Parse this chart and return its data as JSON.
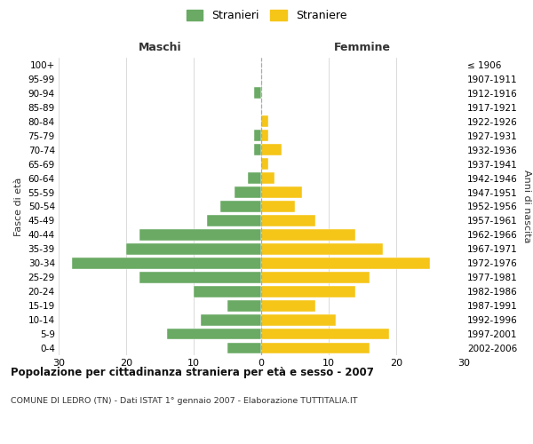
{
  "age_groups": [
    "0-4",
    "5-9",
    "10-14",
    "15-19",
    "20-24",
    "25-29",
    "30-34",
    "35-39",
    "40-44",
    "45-49",
    "50-54",
    "55-59",
    "60-64",
    "65-69",
    "70-74",
    "75-79",
    "80-84",
    "85-89",
    "90-94",
    "95-99",
    "100+"
  ],
  "birth_years": [
    "2002-2006",
    "1997-2001",
    "1992-1996",
    "1987-1991",
    "1982-1986",
    "1977-1981",
    "1972-1976",
    "1967-1971",
    "1962-1966",
    "1957-1961",
    "1952-1956",
    "1947-1951",
    "1942-1946",
    "1937-1941",
    "1932-1936",
    "1927-1931",
    "1922-1926",
    "1917-1921",
    "1912-1916",
    "1907-1911",
    "≤ 1906"
  ],
  "males": [
    5,
    14,
    9,
    5,
    10,
    18,
    28,
    20,
    18,
    8,
    6,
    4,
    2,
    0,
    1,
    1,
    0,
    0,
    1,
    0,
    0
  ],
  "females": [
    16,
    19,
    11,
    8,
    14,
    16,
    25,
    18,
    14,
    8,
    5,
    6,
    2,
    1,
    3,
    1,
    1,
    0,
    0,
    0,
    0
  ],
  "male_color": "#6aaa64",
  "female_color": "#f5c518",
  "background_color": "#ffffff",
  "grid_color": "#cccccc",
  "title": "Popolazione per cittadinanza straniera per età e sesso - 2007",
  "subtitle": "COMUNE DI LEDRO (TN) - Dati ISTAT 1° gennaio 2007 - Elaborazione TUTTITALIA.IT",
  "xlabel_left": "Maschi",
  "xlabel_right": "Femmine",
  "ylabel_left": "Fasce di età",
  "ylabel_right": "Anni di nascita",
  "legend_male": "Stranieri",
  "legend_female": "Straniere",
  "xlim": 30,
  "bar_height": 0.8
}
